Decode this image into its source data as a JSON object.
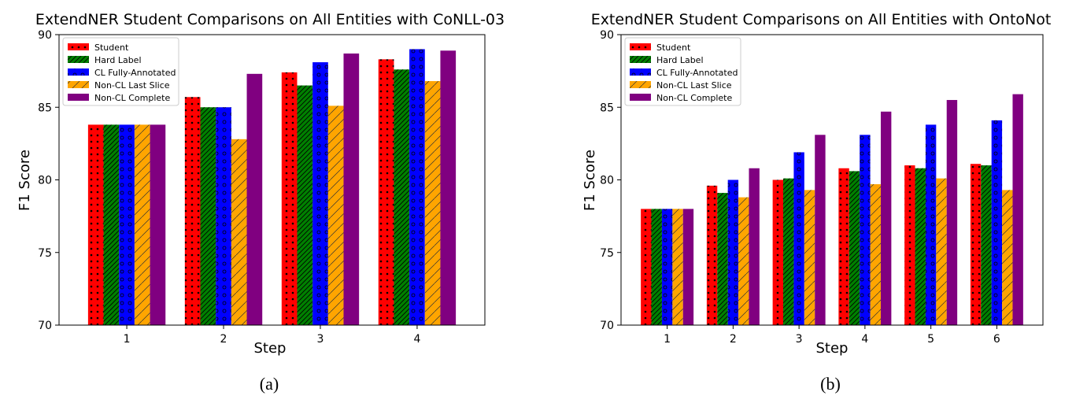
{
  "chart_data": [
    {
      "type": "bar",
      "title": "ExtendNER Student Comparisons on All Entities with CoNLL-03",
      "xlabel": "Step",
      "ylabel": "F1 Score",
      "ylim": [
        70,
        90
      ],
      "yticks": [
        "70",
        "75",
        "80",
        "85",
        "90"
      ],
      "categories": [
        "1",
        "2",
        "3",
        "4"
      ],
      "legend_position": "upper-left",
      "grid": false,
      "caption": "(a)",
      "series": [
        {
          "name": "Student",
          "color": "#ff0000",
          "pattern": "dots",
          "values": [
            83.8,
            85.7,
            87.4,
            88.3
          ]
        },
        {
          "name": "Hard Label",
          "color": "#008000",
          "pattern": "diagonal",
          "values": [
            83.8,
            85.0,
            86.5,
            87.6
          ]
        },
        {
          "name": "CL Fully-Annotated",
          "color": "#0000ff",
          "pattern": "circles",
          "values": [
            83.8,
            85.0,
            88.1,
            89.0
          ]
        },
        {
          "name": "Non-CL Last Slice",
          "color": "#ffa500",
          "pattern": "slash",
          "values": [
            83.8,
            82.8,
            85.1,
            86.8
          ]
        },
        {
          "name": "Non-CL Complete",
          "color": "#800080",
          "pattern": "none",
          "values": [
            83.8,
            87.3,
            88.7,
            88.9
          ]
        }
      ]
    },
    {
      "type": "bar",
      "title": "ExtendNER Student Comparisons on All Entities with OntoNot",
      "xlabel": "Step",
      "ylabel": "F1 Score",
      "ylim": [
        70,
        90
      ],
      "yticks": [
        "70",
        "75",
        "80",
        "85",
        "90"
      ],
      "categories": [
        "1",
        "2",
        "3",
        "4",
        "5",
        "6"
      ],
      "legend_position": "upper-left",
      "grid": false,
      "caption": "(b)",
      "series": [
        {
          "name": "Student",
          "color": "#ff0000",
          "pattern": "dots",
          "values": [
            78.0,
            79.6,
            80.0,
            80.8,
            81.0,
            81.1
          ]
        },
        {
          "name": "Hard Label",
          "color": "#008000",
          "pattern": "diagonal",
          "values": [
            78.0,
            79.1,
            80.1,
            80.6,
            80.8,
            81.0
          ]
        },
        {
          "name": "CL Fully-Annotated",
          "color": "#0000ff",
          "pattern": "circles",
          "values": [
            78.0,
            80.0,
            81.9,
            83.1,
            83.8,
            84.1
          ]
        },
        {
          "name": "Non-CL Last Slice",
          "color": "#ffa500",
          "pattern": "slash",
          "values": [
            78.0,
            78.8,
            79.3,
            79.7,
            80.1,
            79.3
          ]
        },
        {
          "name": "Non-CL Complete",
          "color": "#800080",
          "pattern": "none",
          "values": [
            78.0,
            80.8,
            83.1,
            84.7,
            85.5,
            85.9
          ]
        }
      ]
    }
  ]
}
